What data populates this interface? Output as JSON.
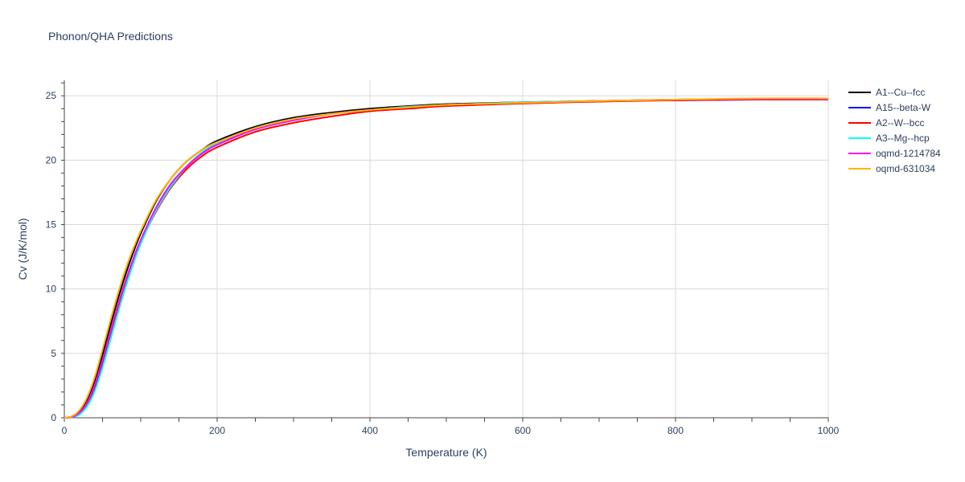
{
  "chart_data": {
    "type": "line",
    "title": "Phonon/QHA Predictions",
    "xlabel": "Temperature (K)",
    "ylabel": "Cv (J/K/mol)",
    "xlim": [
      0,
      1000
    ],
    "ylim": [
      0,
      26.2
    ],
    "xticks": [
      0,
      200,
      400,
      600,
      800,
      1000
    ],
    "yticks": [
      0,
      5,
      10,
      15,
      20,
      25
    ],
    "grid": true,
    "legend_position": "right",
    "series": [
      {
        "name": "A1--Cu--fcc",
        "color": "#000000",
        "x": [
          0,
          10,
          20,
          30,
          40,
          50,
          60,
          70,
          80,
          90,
          100,
          120,
          140,
          160,
          180,
          200,
          250,
          300,
          350,
          400,
          450,
          500,
          600,
          700,
          800,
          900,
          1000
        ],
        "y": [
          0,
          0.1,
          0.5,
          1.4,
          2.9,
          4.9,
          7.1,
          9.2,
          11.1,
          12.8,
          14.3,
          16.8,
          18.6,
          19.9,
          20.8,
          21.5,
          22.6,
          23.3,
          23.7,
          24.0,
          24.2,
          24.35,
          24.5,
          24.6,
          24.7,
          24.75,
          24.8
        ]
      },
      {
        "name": "A15--beta-W",
        "color": "#0000ff",
        "x": [
          0,
          10,
          20,
          30,
          40,
          50,
          60,
          70,
          80,
          90,
          100,
          120,
          140,
          160,
          180,
          200,
          250,
          300,
          350,
          400,
          450,
          500,
          600,
          700,
          800,
          900,
          1000
        ],
        "y": [
          0,
          0.05,
          0.3,
          1.0,
          2.3,
          4.2,
          6.3,
          8.4,
          10.3,
          12.1,
          13.6,
          16.2,
          18.1,
          19.5,
          20.5,
          21.2,
          22.4,
          23.1,
          23.6,
          23.9,
          24.1,
          24.25,
          24.45,
          24.6,
          24.65,
          24.7,
          24.75
        ]
      },
      {
        "name": "A2--W--bcc",
        "color": "#ff0000",
        "x": [
          0,
          10,
          20,
          30,
          40,
          50,
          60,
          70,
          80,
          90,
          100,
          120,
          140,
          160,
          180,
          200,
          250,
          300,
          350,
          400,
          450,
          500,
          600,
          700,
          800,
          900,
          1000
        ],
        "y": [
          0,
          0.05,
          0.35,
          1.1,
          2.5,
          4.4,
          6.5,
          8.5,
          10.4,
          12.1,
          13.6,
          16.0,
          17.9,
          19.3,
          20.3,
          21.0,
          22.2,
          22.9,
          23.4,
          23.8,
          24.0,
          24.2,
          24.4,
          24.55,
          24.65,
          24.7,
          24.7
        ]
      },
      {
        "name": "A3--Mg--hcp",
        "color": "#00ffff",
        "x": [
          0,
          10,
          20,
          30,
          40,
          50,
          60,
          70,
          80,
          90,
          100,
          120,
          140,
          160,
          180,
          200,
          250,
          300,
          350,
          400,
          450,
          500,
          600,
          700,
          800,
          900,
          1000
        ],
        "y": [
          0,
          0.04,
          0.25,
          0.9,
          2.1,
          3.9,
          6.0,
          8.1,
          10.1,
          11.9,
          13.5,
          16.1,
          18.0,
          19.5,
          20.6,
          21.3,
          22.5,
          23.2,
          23.6,
          23.9,
          24.15,
          24.3,
          24.5,
          24.6,
          24.7,
          24.75,
          24.75
        ]
      },
      {
        "name": "oqmd-1214784",
        "color": "#ff00ff",
        "x": [
          0,
          10,
          20,
          30,
          40,
          50,
          60,
          70,
          80,
          90,
          100,
          120,
          140,
          160,
          180,
          200,
          250,
          300,
          350,
          400,
          450,
          500,
          600,
          700,
          800,
          900,
          1000
        ],
        "y": [
          0,
          0.06,
          0.4,
          1.2,
          2.6,
          4.5,
          6.6,
          8.7,
          10.6,
          12.3,
          13.8,
          16.3,
          18.2,
          19.5,
          20.5,
          21.2,
          22.4,
          23.1,
          23.6,
          23.9,
          24.1,
          24.3,
          24.45,
          24.6,
          24.7,
          24.75,
          24.75
        ]
      },
      {
        "name": "oqmd-631034",
        "color": "#ffb300",
        "x": [
          0,
          10,
          20,
          30,
          40,
          50,
          60,
          70,
          80,
          90,
          100,
          120,
          140,
          160,
          180,
          200,
          250,
          300,
          350,
          400,
          450,
          500,
          600,
          700,
          800,
          900,
          1000
        ],
        "y": [
          0,
          0.12,
          0.6,
          1.6,
          3.2,
          5.3,
          7.5,
          9.6,
          11.5,
          13.1,
          14.5,
          16.9,
          18.6,
          19.9,
          20.8,
          21.4,
          22.5,
          23.2,
          23.6,
          23.9,
          24.1,
          24.3,
          24.45,
          24.6,
          24.7,
          24.8,
          24.8
        ]
      }
    ]
  }
}
